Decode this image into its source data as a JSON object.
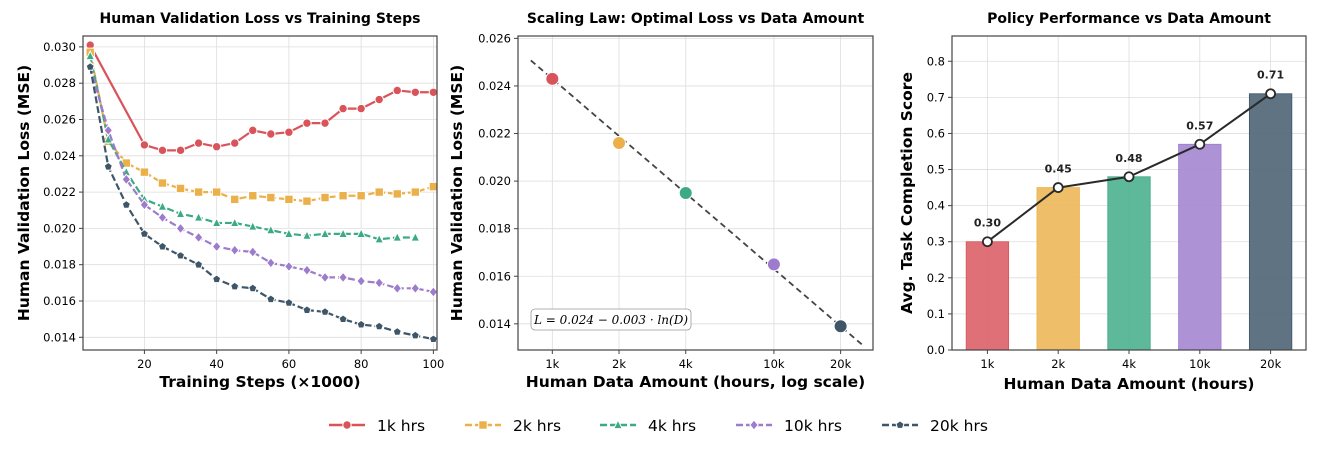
{
  "colors": {
    "1k hrs": "#d9535b",
    "2k hrs": "#ebb04a",
    "4k hrs": "#3cab85",
    "10k hrs": "#9d7ccd",
    "20k hrs": "#3e5668"
  },
  "chart_data": [
    {
      "type": "line",
      "title": "Human Validation Loss vs Training Steps",
      "xlabel": "Training Steps (×1000)",
      "ylabel": "Human Validation Loss (MSE)",
      "xlim": [
        3,
        101
      ],
      "ylim": [
        0.0133,
        0.0306
      ],
      "xticks": [
        "20",
        "40",
        "60",
        "80",
        "100"
      ],
      "yticks": [
        "0.014",
        "0.016",
        "0.018",
        "0.020",
        "0.022",
        "0.024",
        "0.026",
        "0.028",
        "0.030"
      ],
      "grid": true,
      "series": [
        {
          "name": "1k hrs",
          "marker": "circle",
          "x": [
            5,
            20,
            25,
            30,
            35,
            40,
            45,
            50,
            55,
            60,
            65,
            70,
            75,
            80,
            85,
            90,
            95,
            100
          ],
          "values": [
            0.0301,
            0.0246,
            0.0243,
            0.0243,
            0.0247,
            0.0245,
            0.0247,
            0.0254,
            0.0252,
            0.0253,
            0.0258,
            0.0258,
            0.0266,
            0.0266,
            0.0271,
            0.0276,
            0.0275,
            0.0275
          ]
        },
        {
          "name": "2k hrs",
          "marker": "square",
          "x": [
            5,
            10,
            15,
            20,
            25,
            30,
            35,
            40,
            45,
            50,
            55,
            60,
            65,
            70,
            75,
            80,
            85,
            90,
            95,
            100
          ],
          "values": [
            0.0297,
            0.0248,
            0.0236,
            0.0231,
            0.0225,
            0.0222,
            0.022,
            0.022,
            0.0216,
            0.0218,
            0.0217,
            0.0216,
            0.0215,
            0.0217,
            0.0218,
            0.0218,
            0.022,
            0.0219,
            0.022,
            0.0223
          ]
        },
        {
          "name": "4k hrs",
          "marker": "triangle",
          "x": [
            5,
            10,
            15,
            20,
            25,
            30,
            35,
            40,
            45,
            50,
            55,
            60,
            65,
            70,
            75,
            80,
            85,
            90,
            95
          ],
          "values": [
            0.0295,
            0.0249,
            0.0231,
            0.0216,
            0.0212,
            0.0208,
            0.0206,
            0.0203,
            0.0203,
            0.0201,
            0.0199,
            0.0197,
            0.0196,
            0.0197,
            0.0197,
            0.0197,
            0.0194,
            0.0195,
            0.0195
          ]
        },
        {
          "name": "10k hrs",
          "marker": "diamond",
          "x": [
            5,
            10,
            15,
            20,
            25,
            30,
            35,
            40,
            45,
            50,
            55,
            60,
            65,
            70,
            75,
            80,
            85,
            90,
            95,
            100
          ],
          "values": [
            0.0289,
            0.0254,
            0.0227,
            0.0213,
            0.0206,
            0.02,
            0.0195,
            0.019,
            0.0188,
            0.0187,
            0.0181,
            0.0179,
            0.0177,
            0.0173,
            0.0173,
            0.0171,
            0.017,
            0.0167,
            0.0167,
            0.0165
          ]
        },
        {
          "name": "20k hrs",
          "marker": "pentagon",
          "x": [
            5,
            10,
            15,
            20,
            25,
            30,
            35,
            40,
            45,
            50,
            55,
            60,
            65,
            70,
            75,
            80,
            85,
            90,
            95,
            100
          ],
          "values": [
            0.0289,
            0.0234,
            0.0213,
            0.0197,
            0.019,
            0.0185,
            0.018,
            0.0172,
            0.0168,
            0.0167,
            0.0161,
            0.0159,
            0.0155,
            0.0154,
            0.015,
            0.0147,
            0.0146,
            0.0143,
            0.0141,
            0.0139
          ]
        }
      ]
    },
    {
      "type": "scatter",
      "title": "Scaling Law: Optimal Loss vs Data Amount",
      "xlabel": "Human Data Amount (hours, log scale)",
      "ylabel": "Human Validation Loss (MSE)",
      "xscale": "log",
      "xlim": [
        700,
        28000
      ],
      "ylim": [
        0.0129,
        0.0261
      ],
      "xticks": [
        {
          "value": 1000,
          "label": "1k"
        },
        {
          "value": 2000,
          "label": "2k"
        },
        {
          "value": 4000,
          "label": "4k"
        },
        {
          "value": 10000,
          "label": "10k"
        },
        {
          "value": 20000,
          "label": "20k"
        }
      ],
      "yticks": [
        "0.014",
        "0.016",
        "0.018",
        "0.020",
        "0.022",
        "0.024",
        "0.026"
      ],
      "grid": true,
      "points": [
        {
          "x": 1000,
          "y": 0.0243,
          "series": "1k hrs"
        },
        {
          "x": 2000,
          "y": 0.0216,
          "series": "2k hrs"
        },
        {
          "x": 4000,
          "y": 0.0195,
          "series": "4k hrs"
        },
        {
          "x": 10000,
          "y": 0.0165,
          "series": "10k hrs"
        },
        {
          "x": 20000,
          "y": 0.0139,
          "series": "20k hrs"
        }
      ],
      "fit": {
        "intercept": 0.024,
        "slope": -0.003,
        "x_range": [
          800,
          25000
        ]
      },
      "annotation": "L = 0.024 − 0.003 · ln(D)",
      "annotation_placement": "bottom-left"
    },
    {
      "type": "bar",
      "title": "Policy Performance vs Data Amount",
      "xlabel": "Human Data Amount (hours)",
      "ylabel": "Avg. Task Completion Score",
      "categories": [
        "1k",
        "2k",
        "4k",
        "10k",
        "20k"
      ],
      "values": [
        0.3,
        0.45,
        0.48,
        0.57,
        0.71
      ],
      "value_labels": [
        "0.30",
        "0.45",
        "0.48",
        "0.57",
        "0.71"
      ],
      "ylim": [
        0,
        0.87
      ],
      "yticks": [
        "0.0",
        "0.1",
        "0.2",
        "0.3",
        "0.4",
        "0.5",
        "0.6",
        "0.7",
        "0.8"
      ],
      "grid": true,
      "overlay_line": true
    }
  ],
  "legend": {
    "placement": "bottom-center",
    "entries": [
      "1k hrs",
      "2k hrs",
      "4k hrs",
      "10k hrs",
      "20k hrs"
    ]
  }
}
